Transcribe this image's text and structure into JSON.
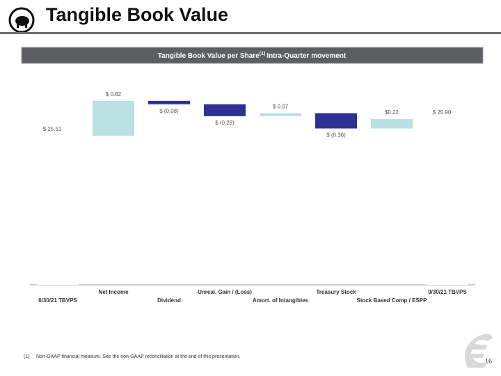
{
  "header": {
    "title": "Tangible Book Value"
  },
  "banner": {
    "text": "Tangible Book Value per Share",
    "superscript": "(1)",
    "text_after": "Intra-Quarter movement"
  },
  "chart_data": {
    "type": "waterfall",
    "categories": [
      "6/30/21 TBVPS",
      "Net Income",
      "Dividend",
      "Unreal. Gain / (Loss)",
      "Amort. of Intangibles",
      "Treasury Stock",
      "Stock Based Comp / ESPP",
      "9/30/21 TBVPS"
    ],
    "values": [
      25.51,
      0.82,
      -0.08,
      -0.28,
      0.07,
      -0.36,
      0.22,
      25.9
    ],
    "value_labels": [
      "$ 25.51",
      "$ 0.82",
      "$ (0.08)",
      "$ (0.28)",
      "$ 0.07",
      "$ (0.36)",
      "$0.22",
      "$ 25.90"
    ],
    "is_total": [
      true,
      false,
      false,
      false,
      false,
      false,
      false,
      true
    ],
    "increase_color": "#b9e0e3",
    "decrease_color": "#2e3192",
    "total_color": "#ffffff",
    "ylim": [
      22,
      27
    ]
  },
  "footnote": {
    "marker": "(1)",
    "text": "Non-GAAP financial measure. See the non-GAAP reconciliation at the end of this presentation."
  },
  "page_number": "16"
}
